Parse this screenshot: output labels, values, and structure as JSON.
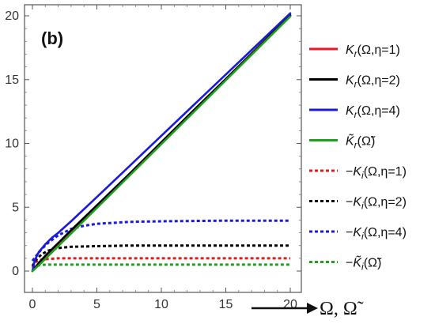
{
  "panel_label": "(b)",
  "x_axis_title": "Ω, Ω̃",
  "chart_data": {
    "type": "line",
    "xlim": [
      0,
      20
    ],
    "ylim": [
      0,
      20.5
    ],
    "x_ticks": [
      0,
      5,
      10,
      15,
      20
    ],
    "y_ticks": [
      0,
      5,
      10,
      15,
      20
    ],
    "x_tick_labels": [
      "0",
      "5",
      "10",
      "15",
      "20"
    ],
    "y_tick_labels": [
      "0",
      "5",
      "10",
      "15",
      "20"
    ],
    "grid": false,
    "legend_position": "right",
    "series": [
      {
        "name": "K_r(Ω,η=1)",
        "color": "#e41a1c",
        "style": "solid",
        "x": [
          0,
          0.5,
          1,
          2,
          3,
          5,
          7.5,
          10,
          12.5,
          15,
          17.5,
          20
        ],
        "y": [
          0,
          0.5,
          1.0,
          2.0,
          3.0,
          5.0,
          7.5,
          10.0,
          12.5,
          15.0,
          17.5,
          20.0
        ]
      },
      {
        "name": "K_r(Ω,η=2)",
        "color": "#000000",
        "style": "solid",
        "x": [
          0,
          0.5,
          1,
          2,
          3,
          5,
          7.5,
          10,
          12.5,
          15,
          17.5,
          20
        ],
        "y": [
          0,
          0.65,
          1.2,
          2.2,
          3.2,
          5.15,
          7.6,
          10.1,
          12.6,
          15.05,
          17.55,
          20.05
        ]
      },
      {
        "name": "K_r(Ω,η=4)",
        "color": "#1a1adf",
        "style": "solid",
        "x": [
          0,
          0.2,
          0.5,
          1,
          1.5,
          2,
          3,
          5,
          7.5,
          10,
          12.5,
          15,
          17.5,
          20
        ],
        "y": [
          0,
          0.9,
          1.5,
          2.1,
          2.6,
          3.0,
          3.9,
          5.8,
          8.2,
          10.6,
          13.0,
          15.4,
          17.8,
          20.2
        ]
      },
      {
        "name": "K̃_r(Ω̃)",
        "color": "#1fa01f",
        "style": "solid",
        "x": [
          0,
          0.5,
          1,
          2,
          3,
          5,
          7.5,
          10,
          12.5,
          15,
          17.5,
          20
        ],
        "y": [
          0,
          0.45,
          0.95,
          1.95,
          2.95,
          4.95,
          7.45,
          9.95,
          12.45,
          14.95,
          17.45,
          19.95
        ]
      },
      {
        "name": "−K_i(Ω,η=1)",
        "color": "#e41a1c",
        "style": "dotted",
        "x": [
          0,
          0.3,
          0.7,
          1.2,
          2,
          3,
          5,
          10,
          15,
          20
        ],
        "y": [
          0.3,
          0.75,
          0.9,
          0.95,
          1.0,
          1.0,
          1.0,
          1.0,
          1.0,
          1.0
        ]
      },
      {
        "name": "−K_i(Ω,η=2)",
        "color": "#000000",
        "style": "dotted",
        "x": [
          0,
          0.3,
          0.7,
          1.2,
          2,
          3,
          5,
          7.5,
          10,
          15,
          20
        ],
        "y": [
          0.4,
          0.9,
          1.3,
          1.6,
          1.8,
          1.9,
          1.95,
          2.0,
          2.0,
          2.0,
          2.0
        ]
      },
      {
        "name": "−K_i(Ω,η=4)",
        "color": "#1a1adf",
        "style": "dotted",
        "x": [
          0,
          0.3,
          0.7,
          1.2,
          2,
          3,
          4,
          5,
          7.5,
          10,
          15,
          20
        ],
        "y": [
          0.8,
          1.2,
          1.7,
          2.2,
          2.8,
          3.3,
          3.55,
          3.7,
          3.85,
          3.9,
          3.95,
          3.95
        ]
      },
      {
        "name": "−K̃_i(Ω̃)",
        "color": "#1fa01f",
        "style": "dotted",
        "x": [
          0,
          0.3,
          0.7,
          1.2,
          2,
          3,
          5,
          10,
          15,
          20
        ],
        "y": [
          0.2,
          0.4,
          0.48,
          0.5,
          0.5,
          0.5,
          0.5,
          0.5,
          0.5,
          0.5
        ]
      }
    ]
  },
  "legend": [
    {
      "main": "K",
      "sub": "r",
      "tilde": false,
      "args": "(Ω,η=1)",
      "neg": false,
      "color": "#e41a1c",
      "style": "solid"
    },
    {
      "main": "K",
      "sub": "r",
      "tilde": false,
      "args": "(Ω,η=2)",
      "neg": false,
      "color": "#000000",
      "style": "solid"
    },
    {
      "main": "K",
      "sub": "r",
      "tilde": false,
      "args": "(Ω,η=4)",
      "neg": false,
      "color": "#1a1adf",
      "style": "solid"
    },
    {
      "main": "K",
      "sub": "r",
      "tilde": true,
      "args": "(Ω̃)",
      "neg": false,
      "color": "#1fa01f",
      "style": "solid"
    },
    {
      "main": "K",
      "sub": "i",
      "tilde": false,
      "args": "(Ω,η=1)",
      "neg": true,
      "color": "#e41a1c",
      "style": "dotted"
    },
    {
      "main": "K",
      "sub": "i",
      "tilde": false,
      "args": "(Ω,η=2)",
      "neg": true,
      "color": "#000000",
      "style": "dotted"
    },
    {
      "main": "K",
      "sub": "i",
      "tilde": false,
      "args": "(Ω,η=4)",
      "neg": true,
      "color": "#1a1adf",
      "style": "dotted"
    },
    {
      "main": "K",
      "sub": "i",
      "tilde": true,
      "args": "(Ω̃)",
      "neg": true,
      "color": "#1fa01f",
      "style": "dotted"
    }
  ]
}
